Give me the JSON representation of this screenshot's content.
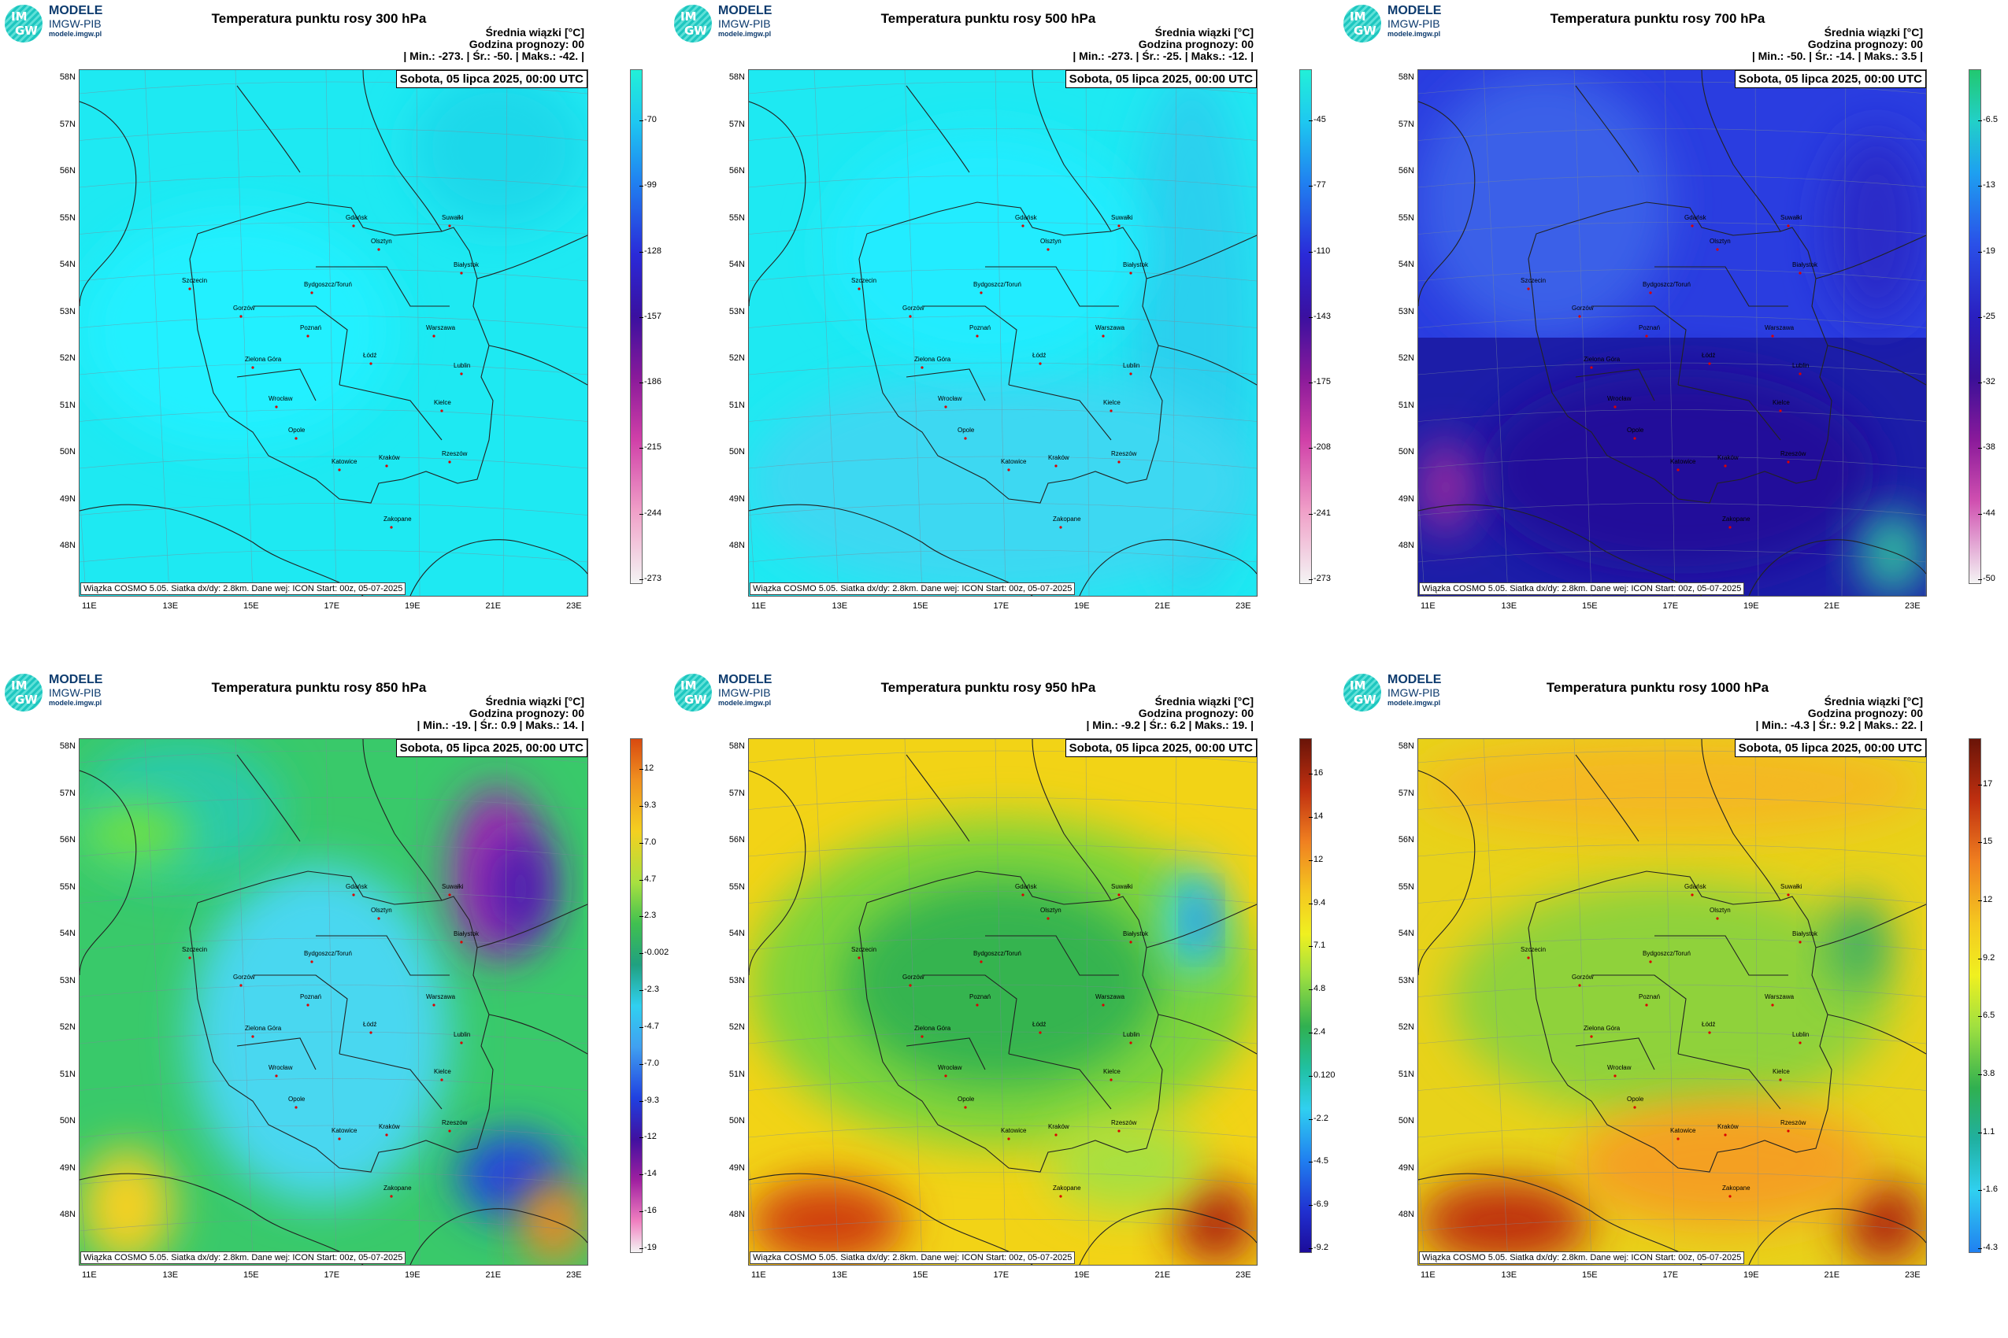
{
  "logo": {
    "mark_top": "IM",
    "mark_bottom": "GW",
    "line1": "MODELE",
    "line2": "IMGW-PIB",
    "line3": "modele.imgw.pl"
  },
  "common": {
    "info_line1": "Średnia wiązki [°C]",
    "info_line2": "Godzina prognozy: 00",
    "date": "Sobota, 05 lipca 2025, 00:00 UTC",
    "footer": "Wiązka COSMO 5.05. Siatka dx/dy: 2.8km. Dane wej: ICON Start: 00z, 05-07-2025",
    "lat_labels": [
      "58N",
      "57N",
      "56N",
      "55N",
      "54N",
      "53N",
      "52N",
      "51N",
      "50N",
      "49N",
      "48N"
    ],
    "lon_labels": [
      "11E",
      "13E",
      "15E",
      "17E",
      "19E",
      "21E",
      "23E"
    ],
    "cities": [
      "Gdańsk",
      "Olsztyn",
      "Suwałki",
      "Szczecin",
      "Białystok",
      "Bydgoszcz/Toruń",
      "Gorzów",
      "Poznań",
      "Warszawa",
      "Zielona Góra",
      "Łódź",
      "Lublin",
      "Wrocław",
      "Kielce",
      "Opole",
      "Rzeszów",
      "Katowice",
      "Kraków",
      "Zakopane"
    ]
  },
  "panels": [
    {
      "title": "Temperatura punktu rosy 300 hPa",
      "stats": "| Min.:   -273. | Śr.:    -50. | Maks.:    -42. |",
      "colorbar": [
        "-70",
        "-99",
        "-128",
        "-157",
        "-186",
        "-215",
        "-244",
        "-273"
      ],
      "colors": {
        "base": "#1ee9f2",
        "accent": "#20d9ea"
      }
    },
    {
      "title": "Temperatura punktu rosy 500 hPa",
      "stats": "| Min.:   -273. | Śr.:    -25. | Maks.:    -12. |",
      "colorbar": [
        "-45",
        "-77",
        "-110",
        "-143",
        "-175",
        "-208",
        "-241",
        "-273"
      ],
      "colors": {
        "base": "#1ee9f2",
        "accent": "#3fdcf0"
      }
    },
    {
      "title": "Temperatura punktu rosy 700 hPa",
      "stats": "| Min.:    -50. | Śr.:    -14. | Maks.:    3.5 |",
      "colorbar": [
        "-6.5",
        "-13",
        "-19",
        "-25",
        "-32",
        "-38",
        "-44",
        "-50"
      ],
      "colors": {
        "base": "#2a3de0",
        "accent": "#23119a"
      }
    },
    {
      "title": "Temperatura punktu rosy 850 hPa",
      "stats": "| Min.:    -19. | Śr.:    0.9 | Maks.:    14. |",
      "colorbar": [
        "12",
        "9.3",
        "7.0",
        "4.7",
        "2.3",
        "-0.002",
        "-2.3",
        "-4.7",
        "-7.0",
        "-9.3",
        "-12",
        "-14",
        "-16",
        "-19"
      ],
      "colors": {
        "base": "#39c96a",
        "accent": "#4ad7f0"
      }
    },
    {
      "title": "Temperatura punktu rosy 950 hPa",
      "stats": "| Min.:    -9.2 | Śr.:    6.2 | Maks.:    19. |",
      "colorbar": [
        "16",
        "14",
        "12",
        "9.4",
        "7.1",
        "4.8",
        "2.4",
        "0.120",
        "-2.2",
        "-4.5",
        "-6.9",
        "-9.2"
      ],
      "colors": {
        "base": "#7fd43a",
        "accent": "#f2d316"
      }
    },
    {
      "title": "Temperatura punktu rosy 1000 hPa",
      "stats": "| Min.:    -4.3 | Śr.:    9.2 | Maks.:    22. |",
      "colorbar": [
        "17",
        "15",
        "12",
        "9.2",
        "6.5",
        "3.8",
        "1.1",
        "-1.6",
        "-4.3"
      ],
      "colors": {
        "base": "#e8d21a",
        "accent": "#8fd23a"
      }
    }
  ]
}
